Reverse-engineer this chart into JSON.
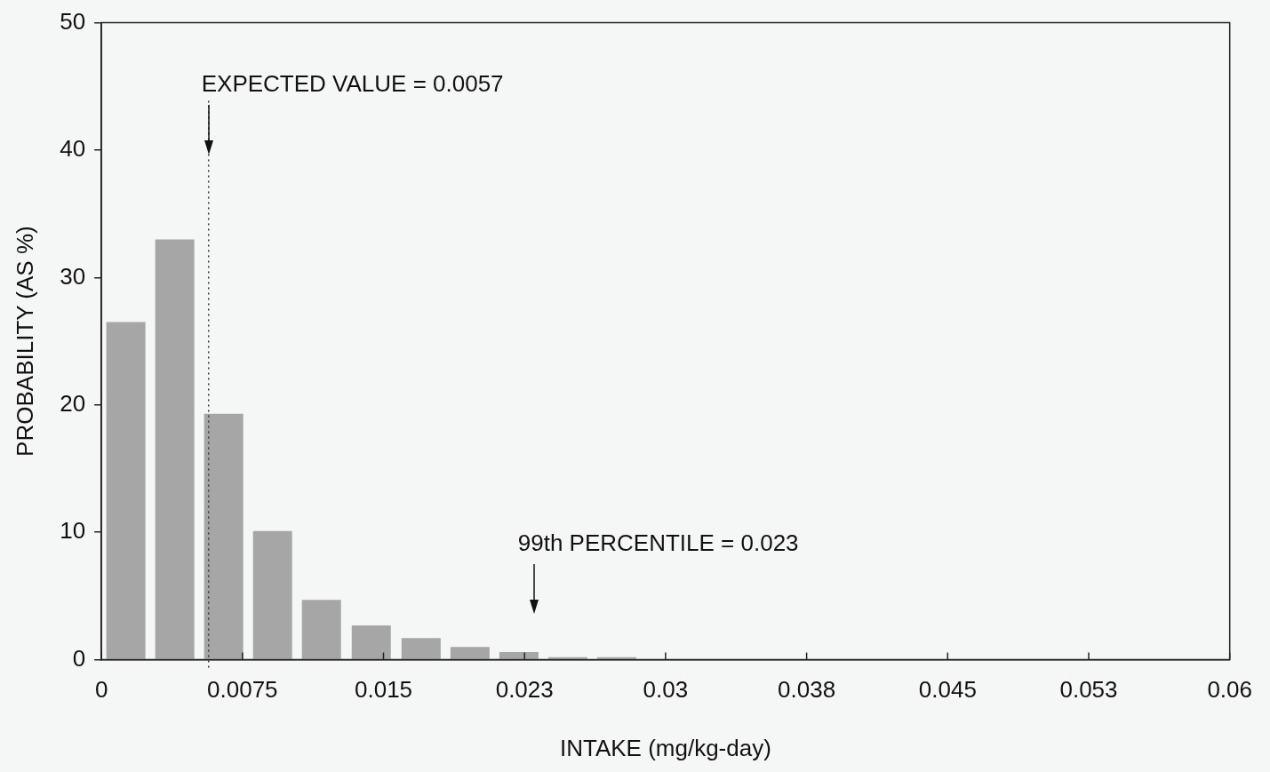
{
  "chart_data": {
    "type": "histogram",
    "xlabel": "INTAKE (mg/kg-day)",
    "ylabel": "PROBABILITY (AS %)",
    "bins": [
      0,
      0.0026,
      0.0052,
      0.0078,
      0.0104,
      0.013,
      0.0157,
      0.0183,
      0.0209,
      0.0235,
      0.0261,
      0.0287
    ],
    "values": [
      26.5,
      33.0,
      19.3,
      10.1,
      4.7,
      2.7,
      1.7,
      1.0,
      0.6,
      0.2,
      0.2
    ],
    "color": "#a6a6a6",
    "xlim": [
      0,
      0.06
    ],
    "xticks": [
      0,
      0.0075,
      0.015,
      {
        "value": 0.0225,
        "label": "0.023"
      },
      0.03,
      {
        "value": 0.0375,
        "label": "0.038"
      },
      0.045,
      {
        "value": 0.0525,
        "label": "0.053"
      },
      0.06
    ],
    "ylim": [
      0,
      50
    ],
    "yticks": [
      0,
      10,
      20,
      30,
      40,
      50
    ],
    "ref_lines": [
      {
        "axis": "x",
        "value": 0.0057,
        "label": "EXPECTED VALUE = 0.0057",
        "line_style": "dotted",
        "color": "#333333"
      },
      {
        "axis": "x",
        "value": 0.023,
        "label": "99th PERCENTILE = 0.023"
      }
    ],
    "grid": false,
    "legend": false
  }
}
